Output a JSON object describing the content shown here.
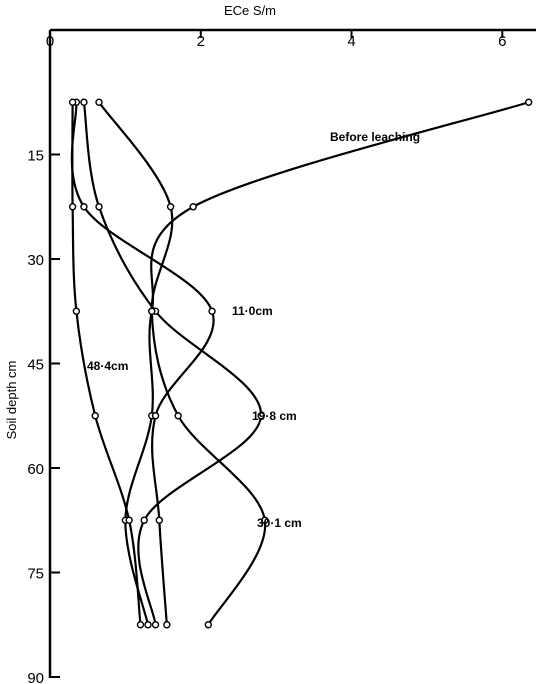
{
  "chart_data": {
    "type": "line",
    "orientation": "depth-profile",
    "xlabel": "ECe S/m",
    "ylabel": "Soil depth cm",
    "xlim": [
      0,
      6.5
    ],
    "ylim": [
      90,
      0
    ],
    "x_ticks": [
      "0",
      "2",
      "4",
      "6"
    ],
    "y_ticks": [
      "15",
      "30",
      "45",
      "60",
      "75",
      "90"
    ],
    "x_axis_position": "top",
    "grid": false,
    "legend": "none",
    "series": [
      {
        "name": "Before leaching",
        "points": [
          [
            6.35,
            7.5
          ],
          [
            1.9,
            22.5
          ],
          [
            1.35,
            37.5
          ],
          [
            1.35,
            52.5
          ],
          [
            1.0,
            67.5
          ],
          [
            1.3,
            82.5
          ]
        ]
      },
      {
        "name": "11·0cm",
        "points": [
          [
            0.35,
            7.5
          ],
          [
            0.45,
            22.5
          ],
          [
            2.15,
            37.5
          ],
          [
            1.4,
            52.5
          ],
          [
            1.45,
            67.5
          ],
          [
            1.55,
            82.5
          ]
        ]
      },
      {
        "name": "19·8 cm",
        "points": [
          [
            0.45,
            7.5
          ],
          [
            0.65,
            22.5
          ],
          [
            1.4,
            37.5
          ],
          [
            2.8,
            52.5
          ],
          [
            1.25,
            67.5
          ],
          [
            1.4,
            82.5
          ]
        ]
      },
      {
        "name": "30·1 cm",
        "points": [
          [
            0.65,
            7.5
          ],
          [
            1.6,
            22.5
          ],
          [
            1.35,
            37.5
          ],
          [
            1.7,
            52.5
          ],
          [
            2.85,
            67.5
          ],
          [
            2.1,
            82.5
          ]
        ]
      },
      {
        "name": "48·4cm",
        "points": [
          [
            0.3,
            7.5
          ],
          [
            0.3,
            22.5
          ],
          [
            0.35,
            37.5
          ],
          [
            0.6,
            52.5
          ],
          [
            1.05,
            67.5
          ],
          [
            1.2,
            82.5
          ]
        ]
      }
    ],
    "annotations": [
      "Before leaching",
      "11·0cm",
      "19·8 cm",
      "30·1 cm",
      "48·4cm"
    ]
  }
}
